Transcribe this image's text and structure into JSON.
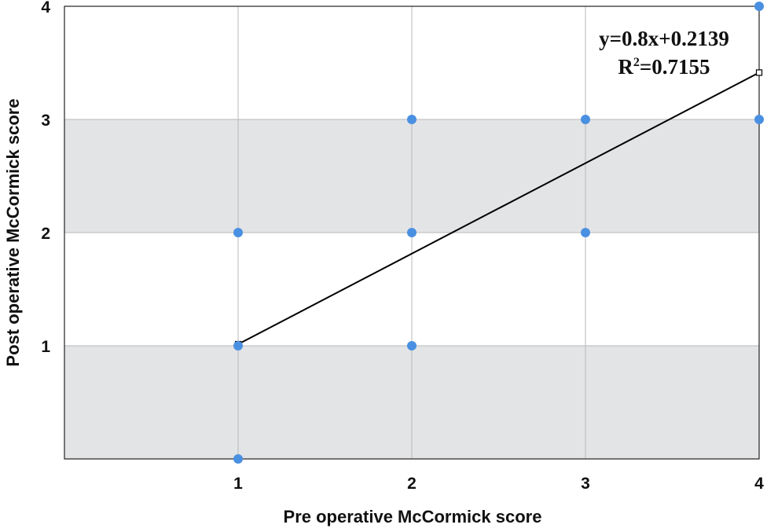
{
  "chart_data": {
    "type": "scatter",
    "title": "",
    "xlabel": "Pre operative McCormick score",
    "ylabel": "Post operative McCormick score",
    "xlim": [
      0,
      4
    ],
    "ylim": [
      0,
      4
    ],
    "xticks": [
      1,
      2,
      3,
      4
    ],
    "yticks": [
      1,
      2,
      3,
      4
    ],
    "grid": true,
    "band_color": "#e3e4e6",
    "point_color": "#4a90e2",
    "points": [
      {
        "x": 1,
        "y": 0
      },
      {
        "x": 1,
        "y": 1
      },
      {
        "x": 1,
        "y": 2
      },
      {
        "x": 2,
        "y": 1
      },
      {
        "x": 2,
        "y": 2
      },
      {
        "x": 2,
        "y": 3
      },
      {
        "x": 3,
        "y": 2
      },
      {
        "x": 3,
        "y": 3
      },
      {
        "x": 4,
        "y": 3
      },
      {
        "x": 4,
        "y": 4
      }
    ],
    "trendline": {
      "slope": 0.8,
      "intercept": 0.2139,
      "x_range": [
        1,
        4
      ],
      "equation_label": "y=0.8x+0.2139",
      "r2_prefix": "R",
      "r2_superscript": "2",
      "r2_value": "=0.7155"
    }
  }
}
